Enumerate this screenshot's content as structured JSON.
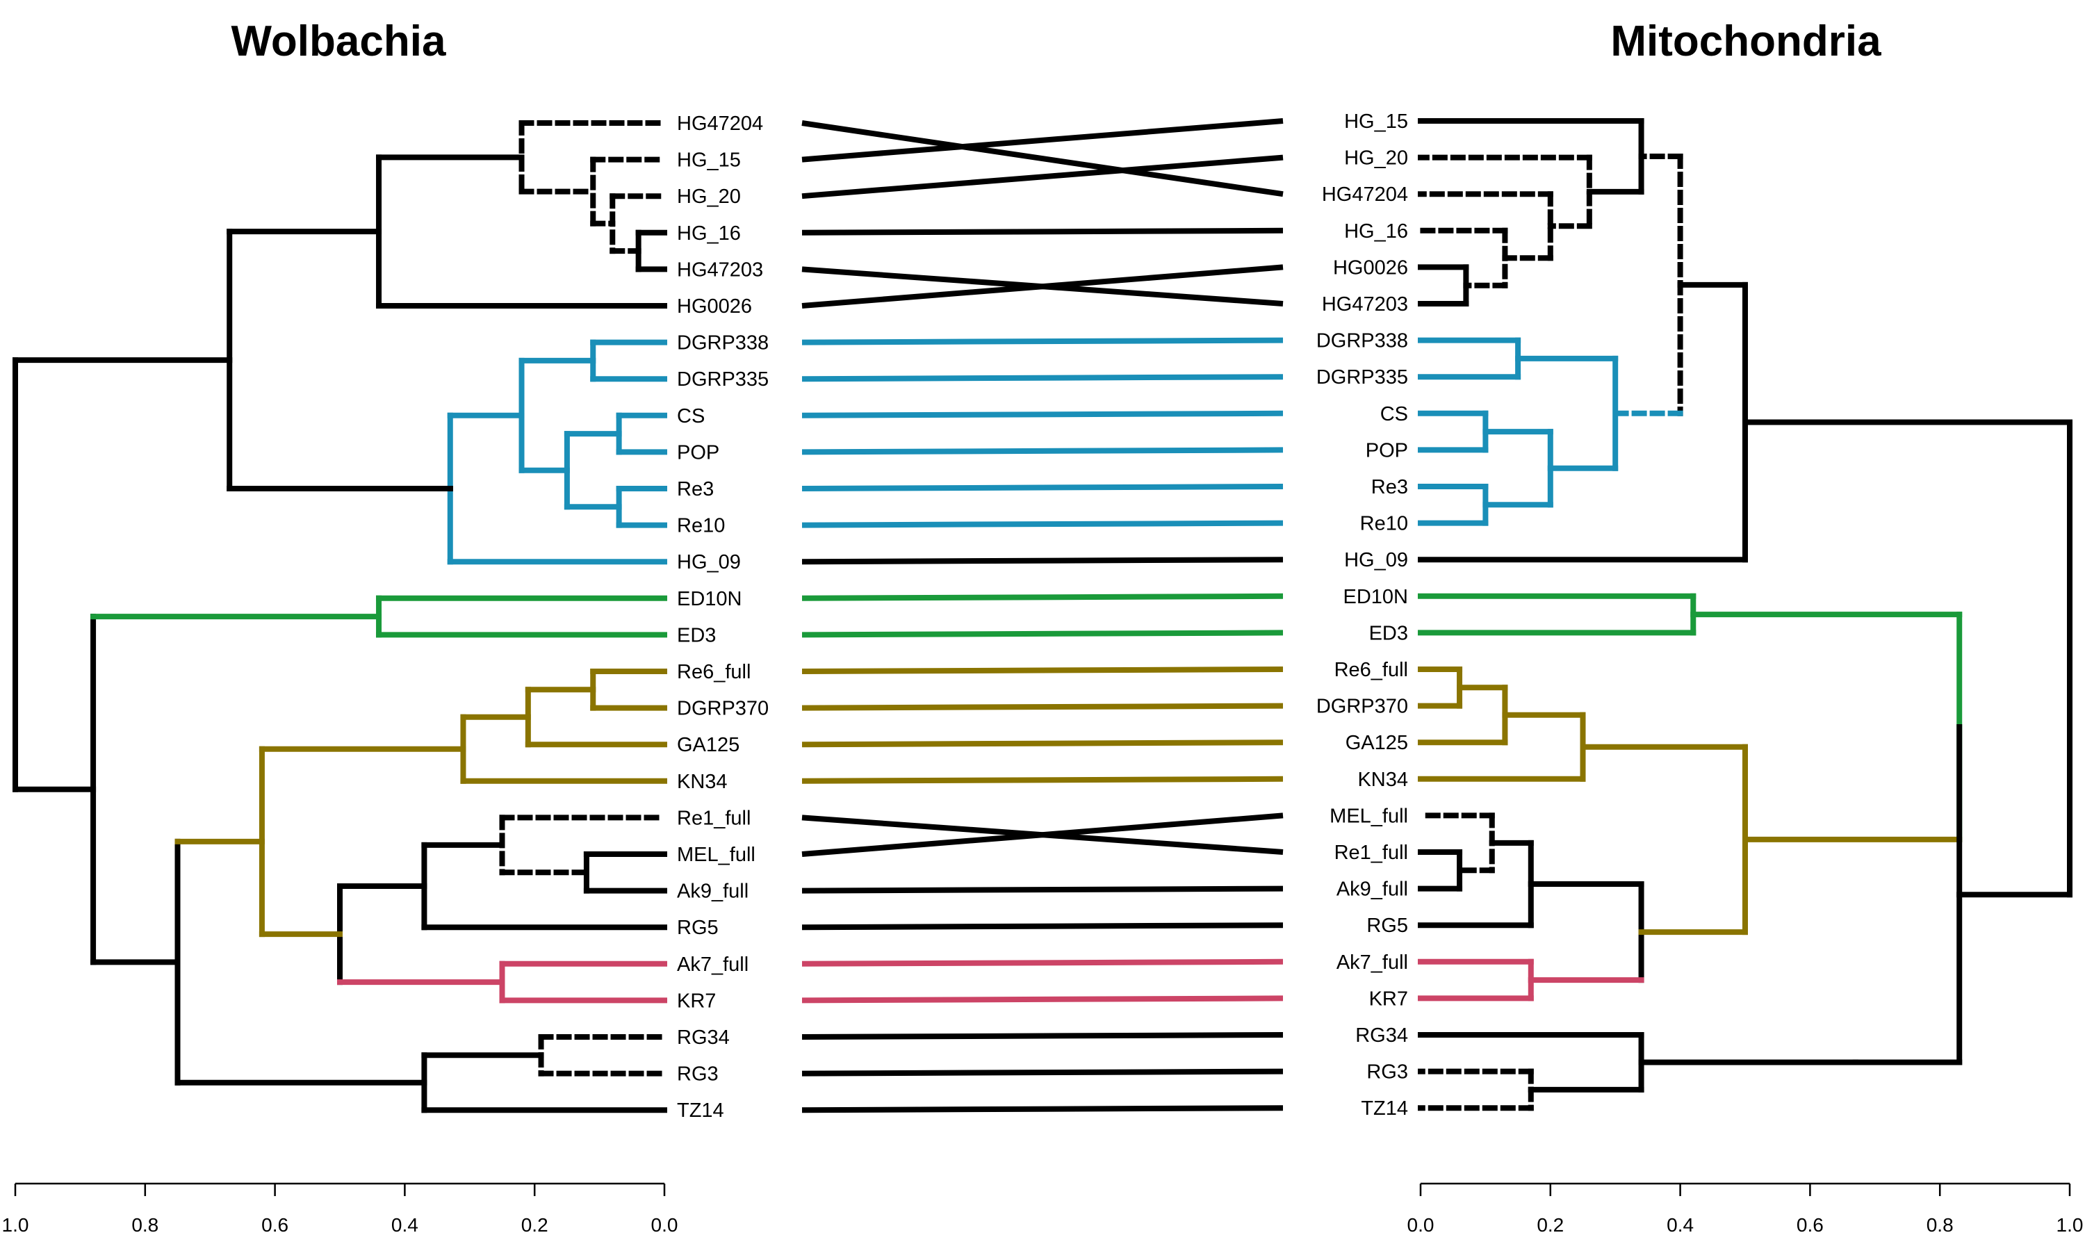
{
  "titles": {
    "left": "Wolbachia",
    "right": "Mitochondria"
  },
  "colors": {
    "black": "#000000",
    "blue": "#1a8fb8",
    "green": "#1a9a3a",
    "olive": "#8a7400",
    "pink": "#cc4466"
  },
  "left_tree": {
    "title": "Wolbachia",
    "leaves": [
      "HG47204",
      "HG_15",
      "HG_20",
      "HG_16",
      "HG47203",
      "HG0026",
      "DGRP338",
      "DGRP335",
      "CS",
      "POP",
      "Re3",
      "Re10",
      "HG_09",
      "ED10N",
      "ED3",
      "Re6_full",
      "DGRP370",
      "GA125",
      "KN34",
      "Re1_full",
      "MEL_full",
      "Ak9_full",
      "RG5",
      "Ak7_full",
      "KR7",
      "RG34",
      "RG3",
      "TZ14"
    ],
    "axis_ticks": [
      "1.0",
      "0.8",
      "0.6",
      "0.4",
      "0.2",
      "0.0"
    ],
    "axis_range": [
      1.0,
      0.0
    ]
  },
  "right_tree": {
    "title": "Mitochondria",
    "leaves": [
      "HG_15",
      "HG_20",
      "HG47204",
      "HG_16",
      "HG0026",
      "HG47203",
      "DGRP338",
      "DGRP335",
      "CS",
      "POP",
      "Re3",
      "Re10",
      "HG_09",
      "ED10N",
      "ED3",
      "Re6_full",
      "DGRP370",
      "GA125",
      "KN34",
      "MEL_full",
      "Re1_full",
      "Ak9_full",
      "RG5",
      "Ak7_full",
      "KR7",
      "RG34",
      "RG3",
      "TZ14"
    ],
    "axis_ticks": [
      "0.0",
      "0.2",
      "0.4",
      "0.6",
      "0.8",
      "1.0"
    ],
    "axis_range": [
      0.0,
      1.0
    ]
  },
  "connections": [
    [
      "HG47204",
      "HG47204",
      "black"
    ],
    [
      "HG_15",
      "HG_15",
      "black"
    ],
    [
      "HG_20",
      "HG_20",
      "black"
    ],
    [
      "HG_16",
      "HG_16",
      "black"
    ],
    [
      "HG47203",
      "HG47203",
      "black"
    ],
    [
      "HG0026",
      "HG0026",
      "black"
    ],
    [
      "DGRP338",
      "DGRP338",
      "blue"
    ],
    [
      "DGRP335",
      "DGRP335",
      "blue"
    ],
    [
      "CS",
      "CS",
      "blue"
    ],
    [
      "POP",
      "POP",
      "blue"
    ],
    [
      "Re3",
      "Re3",
      "blue"
    ],
    [
      "Re10",
      "Re10",
      "blue"
    ],
    [
      "HG_09",
      "HG_09",
      "black"
    ],
    [
      "ED10N",
      "ED10N",
      "green"
    ],
    [
      "ED3",
      "ED3",
      "green"
    ],
    [
      "Re6_full",
      "Re6_full",
      "olive"
    ],
    [
      "DGRP370",
      "DGRP370",
      "olive"
    ],
    [
      "GA125",
      "GA125",
      "olive"
    ],
    [
      "KN34",
      "KN34",
      "olive"
    ],
    [
      "Re1_full",
      "Re1_full",
      "black"
    ],
    [
      "MEL_full",
      "MEL_full",
      "black"
    ],
    [
      "Ak9_full",
      "Ak9_full",
      "black"
    ],
    [
      "RG5",
      "RG5",
      "black"
    ],
    [
      "Ak7_full",
      "Ak7_full",
      "pink"
    ],
    [
      "KR7",
      "KR7",
      "pink"
    ],
    [
      "RG34",
      "RG34",
      "black"
    ],
    [
      "RG3",
      "RG3",
      "black"
    ],
    [
      "TZ14",
      "TZ14",
      "black"
    ]
  ]
}
